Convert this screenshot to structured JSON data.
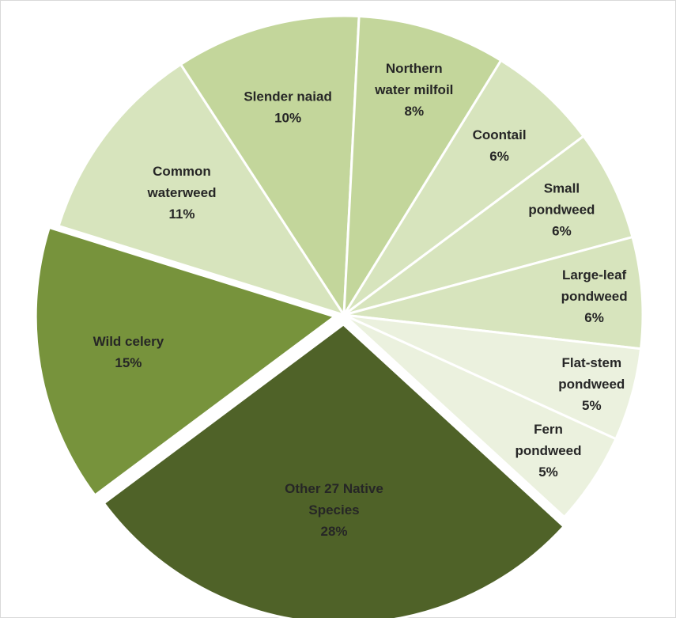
{
  "chart_data": {
    "type": "pie",
    "title": "",
    "slices": [
      {
        "name": "Other 27 Native Species",
        "label_lines": [
          "Other 27 Native",
          "Species"
        ],
        "percent_label": "28%",
        "value": 28,
        "color": "#4f6228",
        "exploded": true
      },
      {
        "name": "Wild celery",
        "label_lines": [
          "Wild celery"
        ],
        "percent_label": "15%",
        "value": 15,
        "color": "#77933c",
        "exploded": true
      },
      {
        "name": "Common waterweed",
        "label_lines": [
          "Common",
          "waterweed"
        ],
        "percent_label": "11%",
        "value": 11,
        "color": "#d7e4bd",
        "exploded": false
      },
      {
        "name": "Slender naiad",
        "label_lines": [
          "Slender naiad"
        ],
        "percent_label": "10%",
        "value": 10,
        "color": "#c3d69b",
        "exploded": false
      },
      {
        "name": "Northern water milfoil",
        "label_lines": [
          "Northern",
          "water milfoil"
        ],
        "percent_label": "8%",
        "value": 8,
        "color": "#c3d69b",
        "exploded": false
      },
      {
        "name": "Coontail",
        "label_lines": [
          "Coontail"
        ],
        "percent_label": "6%",
        "value": 6,
        "color": "#d7e4bd",
        "exploded": false
      },
      {
        "name": "Small pondweed",
        "label_lines": [
          "Small",
          "pondweed"
        ],
        "percent_label": "6%",
        "value": 6,
        "color": "#d7e4bd",
        "exploded": false
      },
      {
        "name": "Large-leaf pondweed",
        "label_lines": [
          "Large-leaf",
          "pondweed"
        ],
        "percent_label": "6%",
        "value": 6,
        "color": "#d7e4bd",
        "exploded": false
      },
      {
        "name": "Flat-stem pondweed",
        "label_lines": [
          "Flat-stem",
          "pondweed"
        ],
        "percent_label": "5%",
        "value": 5,
        "color": "#ebf1de",
        "exploded": false
      },
      {
        "name": "Fern pondweed",
        "label_lines": [
          "Fern",
          "pondweed"
        ],
        "percent_label": "5%",
        "value": 5,
        "color": "#ebf1de",
        "exploded": false
      }
    ]
  }
}
